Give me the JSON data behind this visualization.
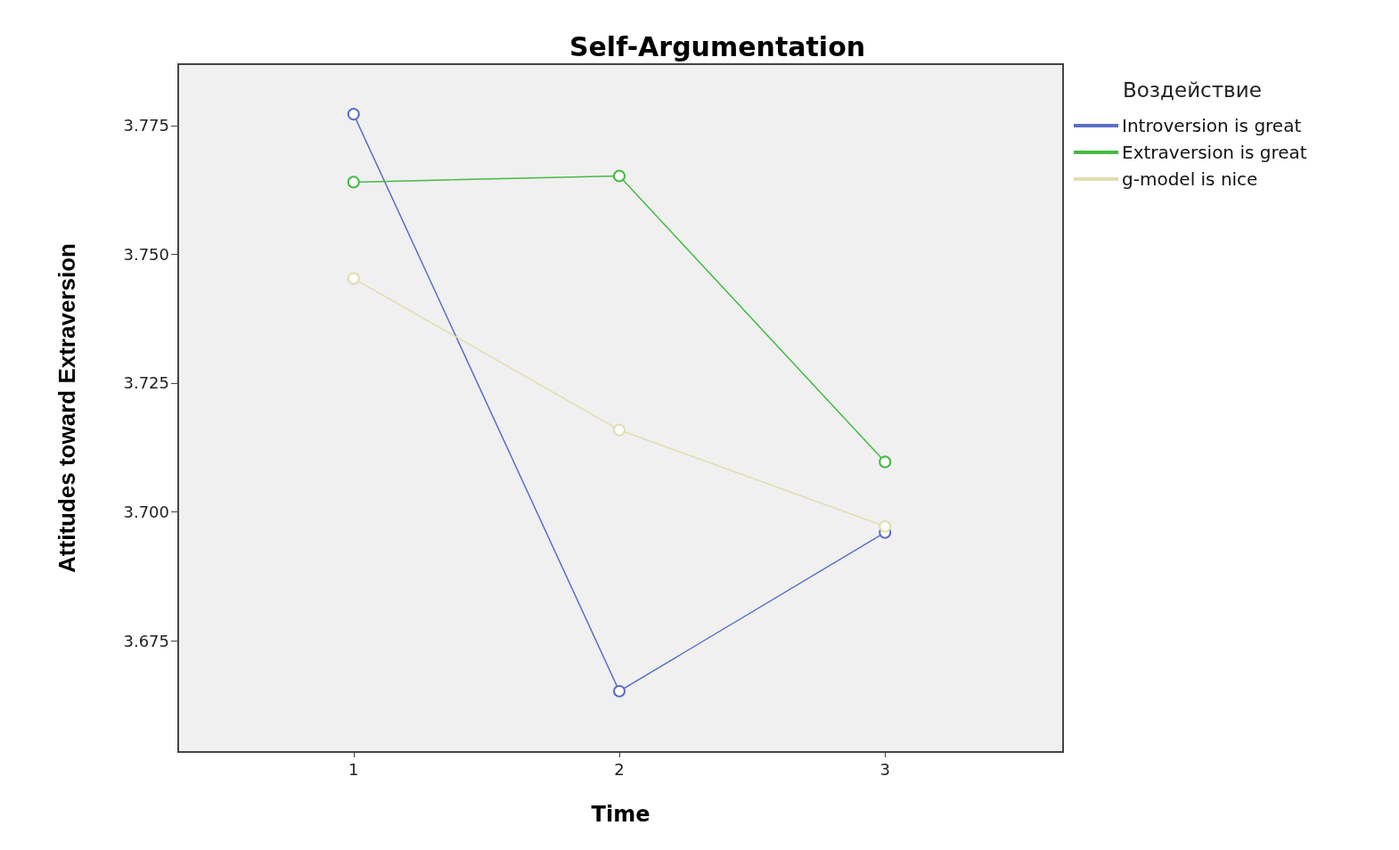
{
  "chart_data": {
    "type": "line",
    "title": "Self-Argumentation",
    "xlabel": "Time",
    "ylabel": "Attitudes toward Extraversion",
    "legend_title": "Воздействие",
    "x": [
      1,
      2,
      3
    ],
    "series": [
      {
        "name": "Introversion is great",
        "color": "#5b6fc6",
        "values": [
          3.7772,
          3.6652,
          3.696
        ]
      },
      {
        "name": "Extraversion is great",
        "color": "#44bb44",
        "values": [
          3.764,
          3.7652,
          3.7097
        ]
      },
      {
        "name": "g-model is nice",
        "color": "#e2ddb0",
        "values": [
          3.7453,
          3.7159,
          3.6972
        ]
      }
    ],
    "xlim": [
      0.34,
      3.67
    ],
    "xticks": [
      1,
      2,
      3
    ],
    "ylim": [
      3.6534,
      3.7869
    ],
    "yticks": [
      {
        "value": 3.675,
        "label": "3.675"
      },
      {
        "value": 3.7,
        "label": "3.700"
      },
      {
        "value": 3.725,
        "label": "3.725"
      },
      {
        "value": 3.75,
        "label": "3.750"
      },
      {
        "value": 3.775,
        "label": "3.775"
      }
    ],
    "grid": false,
    "legend": "top right",
    "marker": "circle",
    "line_style": "solid"
  }
}
